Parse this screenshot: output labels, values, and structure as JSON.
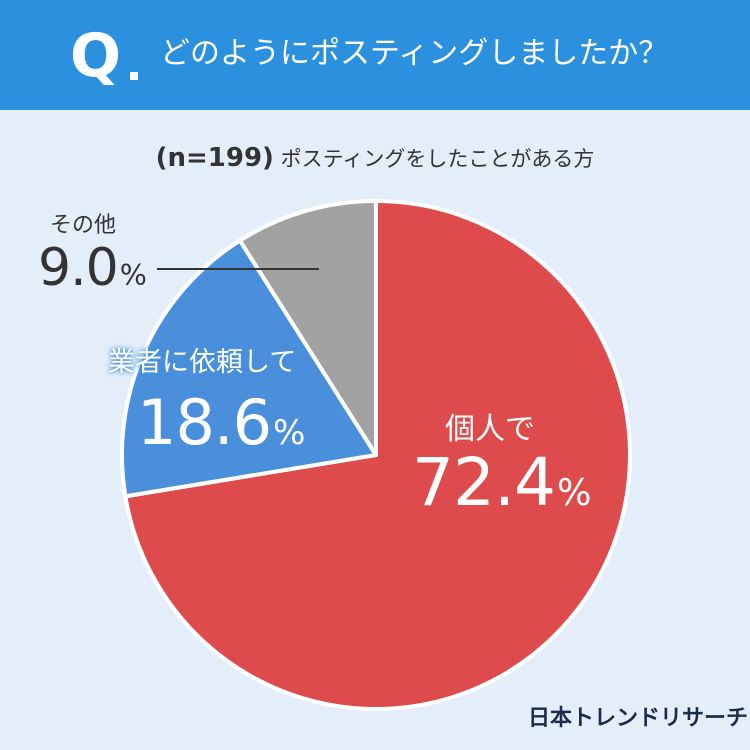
{
  "header": {
    "q_mark": "Q",
    "question": "どのようにポスティングしましたか？"
  },
  "subtitle": {
    "n_label": "(n=199)",
    "text": "ポスティングをしたことがある方"
  },
  "brand": "日本トレンドリサーチ",
  "percent_sign": "%",
  "colors": {
    "header_bg": "#2b90de",
    "background": "#e4eef9",
    "kojin": "#de4b4c",
    "gyosha": "#4a8fdc",
    "other": "#a2a2a2"
  },
  "chart_data": {
    "type": "pie",
    "title": "どのようにポスティングしましたか？",
    "start": "12 o'clock",
    "direction": "clockwise",
    "slices": [
      {
        "label": "個人で",
        "value": 72.4,
        "display": "72.4",
        "color": "#de4b4c"
      },
      {
        "label": "業者に依頼して",
        "value": 18.6,
        "display": "18.6",
        "color": "#4a8fdc"
      },
      {
        "label": "その他",
        "value": 9.0,
        "display": "9.0",
        "color": "#a2a2a2"
      }
    ]
  }
}
